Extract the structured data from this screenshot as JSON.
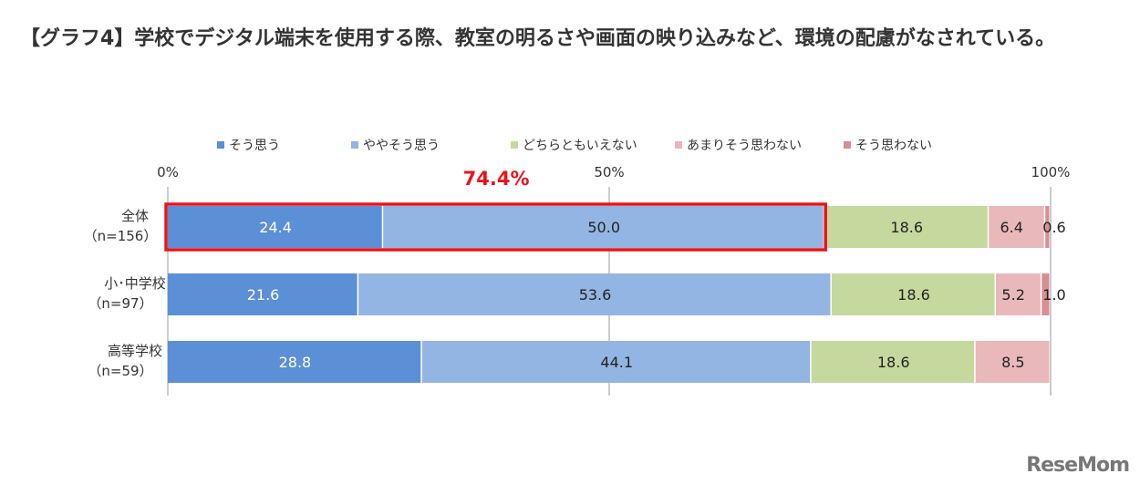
{
  "title": "【グラフ4】学校でデジタル端末を使用する際、教室の明るさや画面の映り込みなど、環境の配慮がなされている。",
  "logo": "ReseMom",
  "chart_data": {
    "type": "bar",
    "orientation": "horizontal-stacked-100",
    "title": "【グラフ4】学校でデジタル端末を使用する際、教室の明るさや画面の映り込みなど、環境の配慮がなされている。",
    "categories": [
      [
        "全体",
        "（n=156）"
      ],
      [
        "小･中学校",
        "（n=97）"
      ],
      [
        "高等学校",
        "（n=59）"
      ]
    ],
    "series": [
      {
        "name": "そう思う",
        "color": "#5b8fd6",
        "values": [
          24.4,
          21.6,
          28.8
        ]
      },
      {
        "name": "ややそう思う",
        "color": "#93b5e3",
        "values": [
          50.0,
          53.6,
          44.1
        ]
      },
      {
        "name": "どちらともいえない",
        "color": "#c5d99e",
        "values": [
          18.6,
          18.6,
          18.6
        ]
      },
      {
        "name": "あまりそう思わない",
        "color": "#e8b8bb",
        "values": [
          6.4,
          5.2,
          8.5
        ]
      },
      {
        "name": "そう思わない",
        "color": "#d88e93",
        "values": [
          0.6,
          1.0,
          0
        ]
      }
    ],
    "xticks": [
      "0%",
      "50%",
      "100%"
    ],
    "xlim": [
      0,
      100
    ],
    "legend": "top",
    "annotation": {
      "text": "74.4%",
      "color": "#e8141c",
      "highlight": "全体 そう思う+ややそう思う"
    }
  }
}
